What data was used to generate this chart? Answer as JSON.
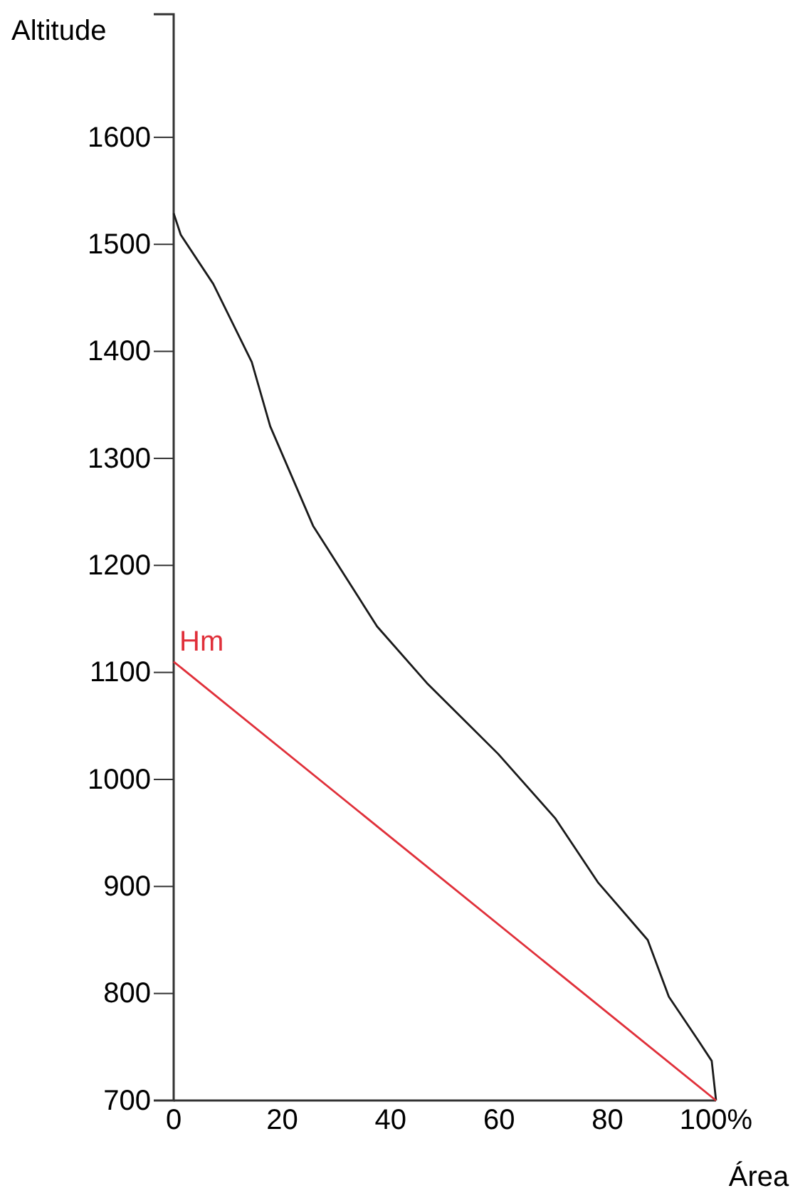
{
  "chart_data": {
    "type": "line",
    "xlabel": "Área",
    "ylabel": "Altitude",
    "xlim": [
      0,
      100
    ],
    "ylim": [
      700,
      1715
    ],
    "xticks": [
      0,
      20,
      40,
      60,
      80,
      {
        "value": 100,
        "label": "100%"
      }
    ],
    "yticks": [
      700,
      800,
      900,
      1000,
      1100,
      1200,
      1300,
      1400,
      1500,
      1600
    ],
    "grid": false,
    "marker": "none",
    "line_style": "solid",
    "series": [
      {
        "color": "#1a1a1a",
        "x": [
          0,
          1.3,
          7.3,
          14.4,
          17.8,
          25.7,
          37.5,
          46.7,
          59.8,
          70.3,
          78.2,
          87.4,
          91.3,
          96.6,
          99.2,
          100
        ],
        "values": [
          1529,
          1509,
          1463,
          1390,
          1330,
          1237,
          1143,
          1090,
          1024,
          964,
          904,
          850,
          797,
          757,
          737,
          700
        ]
      },
      {
        "color": "#e0303a",
        "x": [
          0,
          100
        ],
        "values": [
          1110,
          700
        ]
      }
    ],
    "annotations": [
      {
        "text": "Hm",
        "x": 0,
        "y": 1110
      }
    ]
  }
}
